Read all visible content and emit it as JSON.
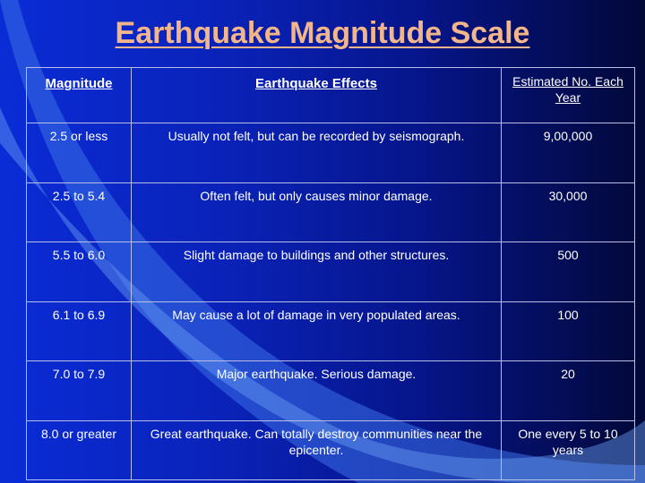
{
  "title": "Earthquake Magnitude Scale",
  "table": {
    "headers": [
      "Magnitude",
      "Earthquake Effects",
      "Estimated No. Each Year"
    ],
    "rows": [
      [
        "2.5 or less",
        "Usually not felt, but can be recorded by seismograph.",
        "9,00,000"
      ],
      [
        "2.5 to 5.4",
        "Often felt, but only causes minor damage.",
        "30,000"
      ],
      [
        "5.5 to 6.0",
        "Slight damage to buildings and other structures.",
        "500"
      ],
      [
        "6.1 to 6.9",
        "May cause a lot of damage in very populated areas.",
        "100"
      ],
      [
        "7.0 to 7.9",
        "Major earthquake. Serious damage.",
        "20"
      ],
      [
        "8.0 or greater",
        "Great earthquake. Can totally destroy communities near the epicenter.",
        "One every 5 to 10 years"
      ]
    ]
  },
  "colors": {
    "title": "#f3b58a",
    "background_left": "#0a2cd6",
    "background_right": "#020838",
    "accent_swoosh": "#4d86f0"
  }
}
